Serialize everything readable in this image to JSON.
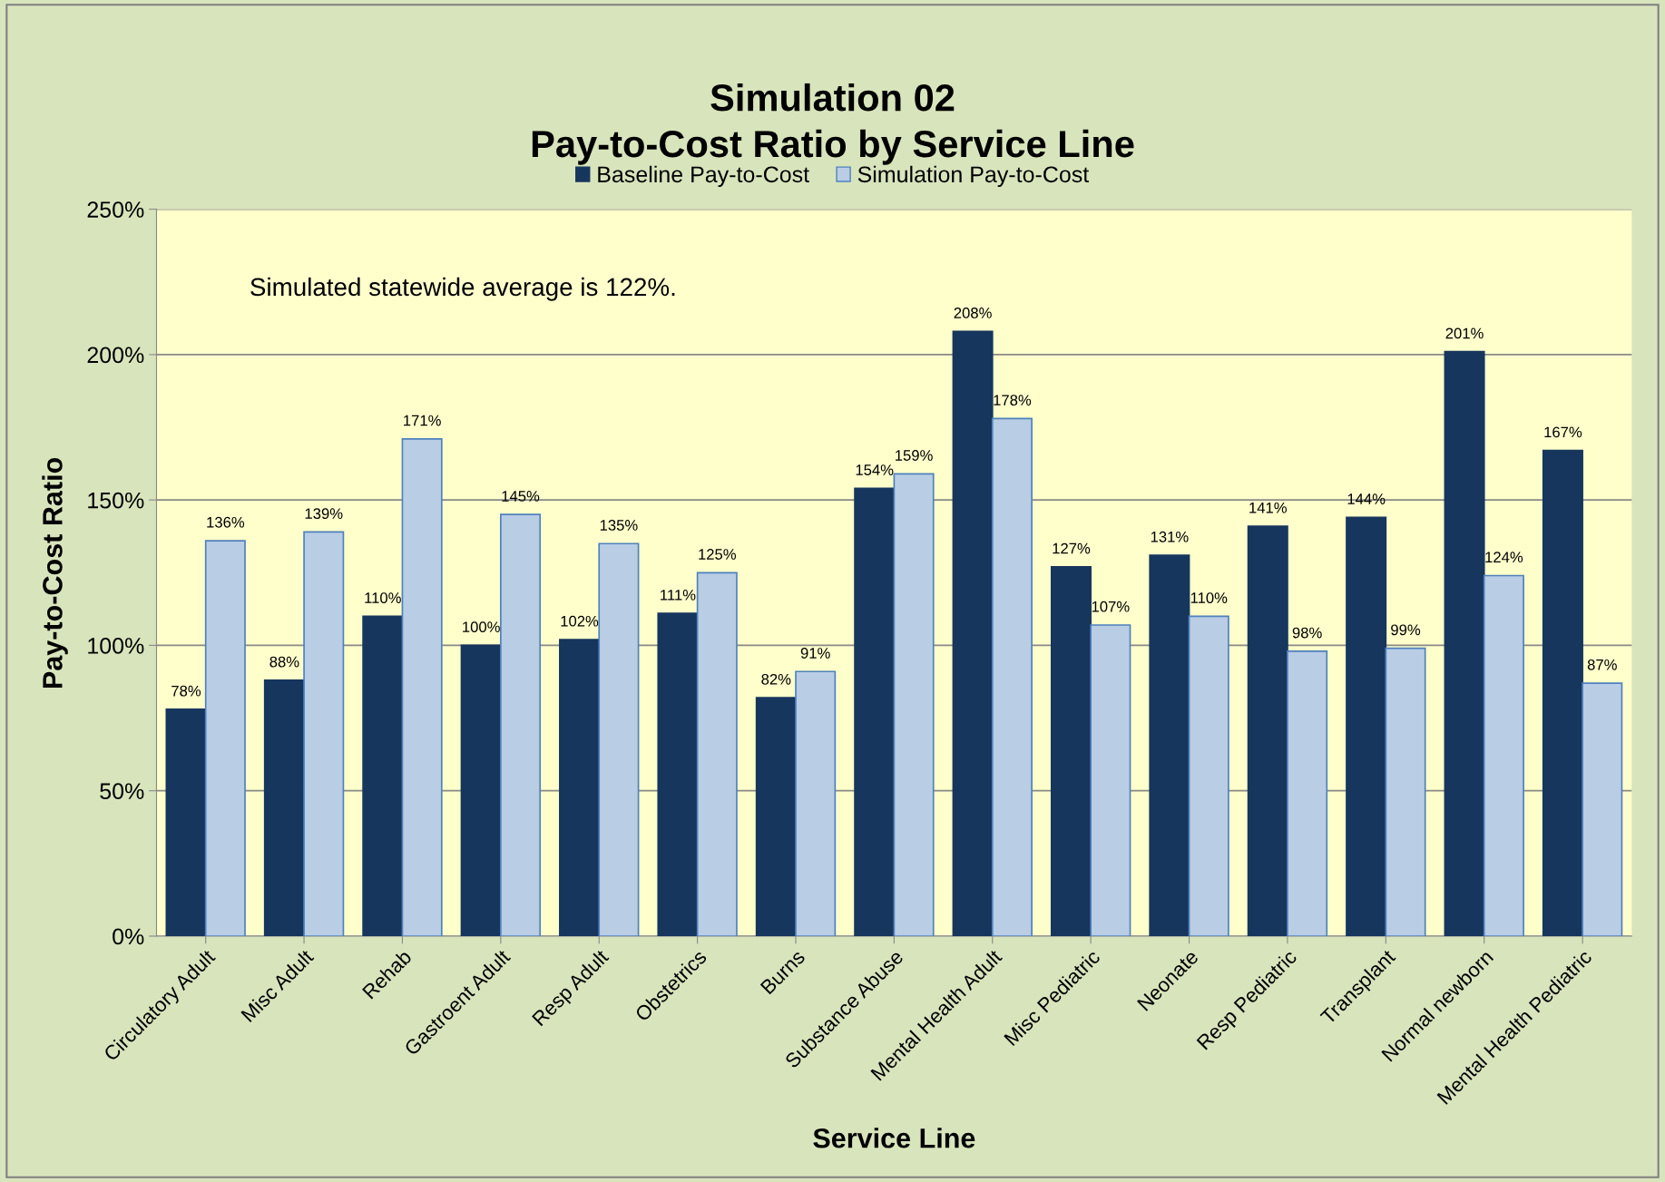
{
  "chart_data": {
    "type": "bar",
    "title": "Simulation 02\nPay-to-Cost Ratio by Service Line",
    "xlabel": "Service Line",
    "ylabel": "Pay-to-Cost Ratio",
    "categories": [
      "Circulatory Adult",
      "Misc Adult",
      "Rehab",
      "Gastroent Adult",
      "Resp Adult",
      "Obstetrics",
      "Burns",
      "Substance Abuse",
      "Mental Health Adult",
      "Misc Pediatric",
      "Neonate",
      "Resp Pediatric",
      "Transplant",
      "Normal newborn",
      "Mental Health Pediatric"
    ],
    "series": [
      {
        "name": "Baseline Pay-to-Cost",
        "color": "#17365d",
        "values": [
          78,
          88,
          110,
          100,
          102,
          111,
          82,
          154,
          208,
          127,
          131,
          141,
          144,
          201,
          167
        ],
        "value_labels": [
          "78%",
          "88%",
          "110%",
          "100%",
          "102%",
          "111%",
          "82%",
          "154%",
          "208%",
          "127%",
          "131%",
          "141%",
          "144%",
          "201%",
          "167%"
        ]
      },
      {
        "name": "Simulation Pay-to-Cost",
        "color": "#b9cde5",
        "values": [
          136,
          139,
          171,
          145,
          135,
          125,
          91,
          159,
          178,
          107,
          110,
          98,
          99,
          124,
          87
        ],
        "value_labels": [
          "136%",
          "139%",
          "171%",
          "145%",
          "135%",
          "125%",
          "91%",
          "159%",
          "178%",
          "107%",
          "110%",
          "98%",
          "99%",
          "124%",
          "87%"
        ]
      }
    ],
    "ylim": [
      0,
      250
    ],
    "yticks": [
      {
        "value": 0,
        "label": "0%"
      },
      {
        "value": 50,
        "label": "50%"
      },
      {
        "value": 100,
        "label": "100%"
      },
      {
        "value": 150,
        "label": "150%"
      },
      {
        "value": 200,
        "label": "200%"
      },
      {
        "value": 250,
        "label": "250%"
      }
    ],
    "grid": "y",
    "legend": "top",
    "annotations": [
      "Simulated statewide average is 122%."
    ]
  }
}
